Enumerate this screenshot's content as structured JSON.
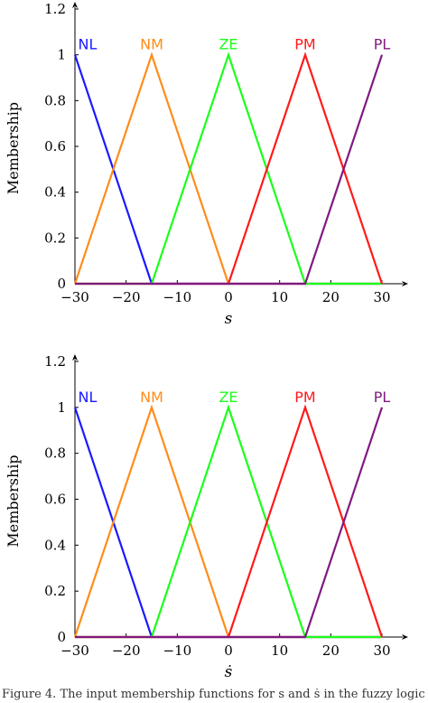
{
  "caption": "Figure 4. The input membership functions for s and ṡ in the fuzzy logic",
  "chart_data": [
    {
      "type": "line",
      "xlabel": "s",
      "ylabel": "Membership",
      "xlim": [
        -30,
        30
      ],
      "ylim": [
        0,
        1.2
      ],
      "xticks": [
        "−30",
        "−20",
        "−10",
        "0",
        "10",
        "20",
        "30"
      ],
      "yticks": [
        "0",
        "0.2",
        "0.4",
        "0.6",
        "0.8",
        "1",
        "1.2"
      ],
      "series": [
        {
          "name": "NL",
          "color": "#1a1aff",
          "x": [
            -30,
            -15,
            30
          ],
          "y": [
            1,
            0,
            0
          ]
        },
        {
          "name": "NM",
          "color": "#ff8c1a",
          "x": [
            -30,
            -15,
            0,
            30
          ],
          "y": [
            0,
            1,
            0,
            0
          ]
        },
        {
          "name": "ZE",
          "color": "#1aff1a",
          "x": [
            -30,
            -15,
            0,
            15,
            30
          ],
          "y": [
            0,
            0,
            1,
            0,
            0
          ]
        },
        {
          "name": "PM",
          "color": "#ff1a1a",
          "x": [
            -30,
            0,
            15,
            30
          ],
          "y": [
            0,
            0,
            1,
            0
          ]
        },
        {
          "name": "PL",
          "color": "#7f1a7f",
          "x": [
            -30,
            15,
            30
          ],
          "y": [
            0,
            0,
            1
          ]
        }
      ]
    },
    {
      "type": "line",
      "xlabel": "ṡ",
      "ylabel": "Membership",
      "xlim": [
        -30,
        30
      ],
      "ylim": [
        0,
        1.2
      ],
      "xticks": [
        "−30",
        "−20",
        "−10",
        "0",
        "10",
        "20",
        "30"
      ],
      "yticks": [
        "0",
        "0.2",
        "0.4",
        "0.6",
        "0.8",
        "1",
        "1.2"
      ],
      "series": [
        {
          "name": "NL",
          "color": "#1a1aff",
          "x": [
            -30,
            -15,
            30
          ],
          "y": [
            1,
            0,
            0
          ]
        },
        {
          "name": "NM",
          "color": "#ff8c1a",
          "x": [
            -30,
            -15,
            0,
            30
          ],
          "y": [
            0,
            1,
            0,
            0
          ]
        },
        {
          "name": "ZE",
          "color": "#1aff1a",
          "x": [
            -30,
            -15,
            0,
            15,
            30
          ],
          "y": [
            0,
            0,
            1,
            0,
            0
          ]
        },
        {
          "name": "PM",
          "color": "#ff1a1a",
          "x": [
            -30,
            0,
            15,
            30
          ],
          "y": [
            0,
            0,
            1,
            0
          ]
        },
        {
          "name": "PL",
          "color": "#7f1a7f",
          "x": [
            -30,
            15,
            30
          ],
          "y": [
            0,
            0,
            1
          ]
        }
      ]
    }
  ]
}
